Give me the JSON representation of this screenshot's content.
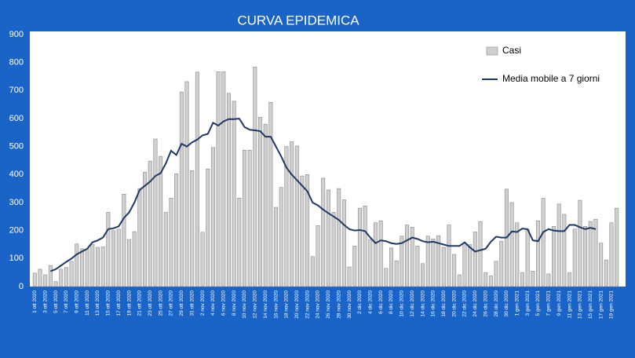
{
  "chart_data": {
    "type": "bar",
    "title": "CURVA EPIDEMICA",
    "categories": [
      "1 ott 2020",
      null,
      "3 ott 2020",
      null,
      "5 ott 2020",
      null,
      "7 ott 2020",
      null,
      "9 ott 2020",
      null,
      "11 ott 2020",
      null,
      "13 ott 2020",
      null,
      "15 ott 2020",
      null,
      "17 ott 2020",
      null,
      "19 ott 2020",
      null,
      "21 ott 2020",
      null,
      "23 ott 2020",
      null,
      "25 ott 2020",
      null,
      "27 ott 2020",
      null,
      "29 ott 2020",
      null,
      "31 ott 2020",
      null,
      "2 nov 2020",
      null,
      "4 nov 2020",
      null,
      "6 nov 2020",
      null,
      "8 nov 2020",
      null,
      "10 nov 2020",
      null,
      "12 nov 2020",
      null,
      "14 nov 2020",
      null,
      "16 nov 2020",
      null,
      "18 nov 2020",
      null,
      "20 nov 2020",
      null,
      "22 nov 2020",
      null,
      "24 nov 2020",
      null,
      "26 nov 2020",
      null,
      "28 nov 2020",
      null,
      "30 nov 2020",
      null,
      "2 dic 2020",
      null,
      "4 dic 2020",
      null,
      "6 dic 2020",
      null,
      "8 dic 2020",
      null,
      "10 dic 2020",
      null,
      "12 dic 2020",
      null,
      "14 dic 2020",
      null,
      "16 dic 2020",
      null,
      "18 dic 2020",
      null,
      "20 dic 2020",
      null,
      "22 dic 2020",
      null,
      "24 dic 2020",
      null,
      "26 dic 2020",
      null,
      "28 dic 2020",
      null,
      "30 dic 2020",
      null,
      "1 gen 2021",
      null,
      "3 gen 2021",
      null,
      "5 gen 2021",
      null,
      "7 gen 2021",
      null,
      "9 gen 2021",
      null,
      "11 gen 2021",
      null,
      "13 gen 2021",
      null,
      "15 gen 2021",
      null,
      "17 gen 2021",
      null,
      "19 gen 2021",
      null
    ],
    "series": [
      {
        "name": "Casi",
        "type": "bar",
        "color": "#d0d0d0",
        "values": [
          48,
          62,
          42,
          75,
          18,
          62,
          68,
          90,
          152,
          135,
          135,
          150,
          140,
          142,
          265,
          200,
          205,
          330,
          168,
          196,
          350,
          408,
          448,
          527,
          465,
          265,
          316,
          403,
          695,
          732,
          414,
          766,
          194,
          420,
          497,
          767,
          767,
          690,
          662,
          316,
          487,
          487,
          784,
          604,
          580,
          658,
          283,
          354,
          500,
          517,
          502,
          395,
          400,
          107,
          218,
          387,
          345,
          265,
          350,
          310,
          70,
          145,
          280,
          288,
          168,
          228,
          235,
          65,
          138,
          92,
          180,
          220,
          212,
          145,
          82,
          180,
          170,
          182,
          140,
          220,
          115,
          42,
          155,
          150,
          195,
          232,
          50,
          38,
          90,
          162,
          348,
          300,
          228,
          50,
          205,
          55,
          235,
          315,
          45,
          215,
          295,
          258,
          50,
          205,
          308,
          215,
          232,
          240,
          155,
          95,
          228,
          280
        ]
      },
      {
        "name": "Media mobile a 7 giorni",
        "type": "line",
        "color": "#1f3864",
        "values": [
          null,
          null,
          null,
          55,
          62,
          75,
          88,
          100,
          115,
          125,
          135,
          158,
          165,
          175,
          205,
          208,
          215,
          245,
          265,
          300,
          345,
          360,
          375,
          395,
          405,
          440,
          485,
          470,
          510,
          500,
          515,
          525,
          540,
          545,
          585,
          575,
          590,
          598,
          598,
          600,
          570,
          560,
          558,
          555,
          535,
          535,
          500,
          465,
          425,
          400,
          380,
          360,
          340,
          300,
          290,
          275,
          262,
          250,
          238,
          220,
          205,
          200,
          202,
          198,
          175,
          155,
          165,
          162,
          155,
          152,
          155,
          165,
          175,
          170,
          162,
          158,
          160,
          155,
          150,
          145,
          145,
          145,
          158,
          140,
          125,
          130,
          135,
          160,
          178,
          175,
          175,
          197,
          195,
          207,
          205,
          165,
          162,
          195,
          205,
          200,
          198,
          198,
          220,
          220,
          212,
          205,
          210,
          205,
          null,
          null,
          null,
          null
        ]
      }
    ],
    "ylim": [
      0,
      900
    ],
    "yticks": [
      0,
      100,
      200,
      300,
      400,
      500,
      600,
      700,
      800,
      900
    ],
    "grid": false,
    "legend": "top-right"
  }
}
